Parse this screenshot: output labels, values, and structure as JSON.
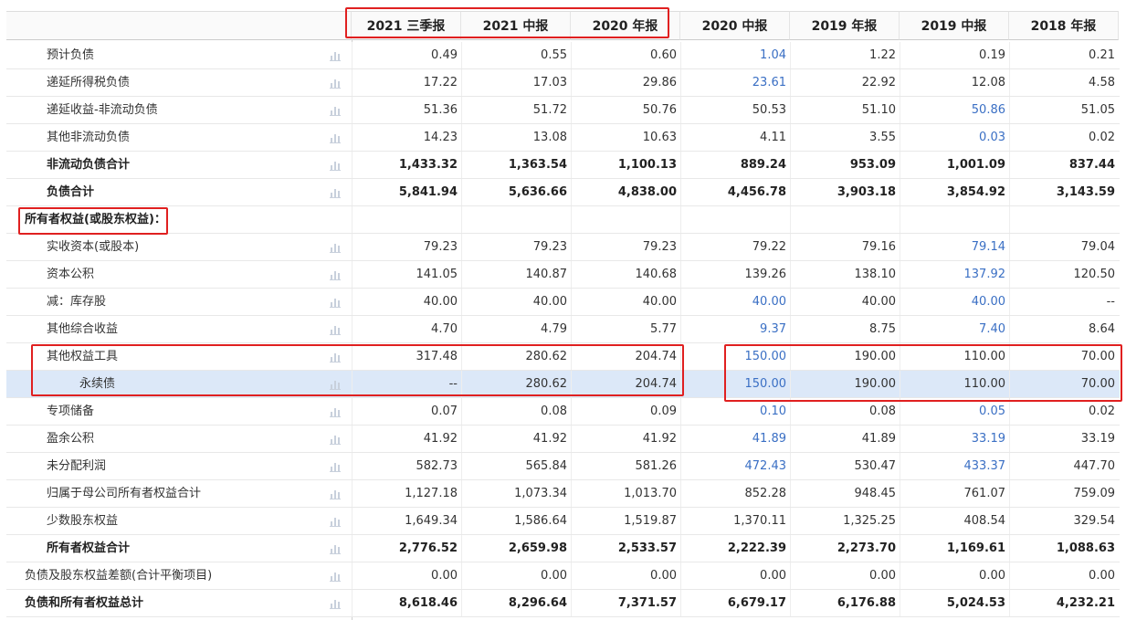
{
  "table": {
    "headers": [
      "2021 三季报",
      "2021 中报",
      "2020 年报",
      "2020 中报",
      "2019 年报",
      "2019 中报",
      "2018 年报"
    ],
    "rows": [
      {
        "label": "预计负债",
        "cells": [
          "0.49",
          "0.55",
          "0.60",
          "1.04",
          "1.22",
          "0.19",
          "0.21"
        ],
        "links": [
          3
        ]
      },
      {
        "label": "递延所得税负债",
        "cells": [
          "17.22",
          "17.03",
          "29.86",
          "23.61",
          "22.92",
          "12.08",
          "4.58"
        ],
        "links": [
          3
        ]
      },
      {
        "label": "递延收益-非流动负债",
        "cells": [
          "51.36",
          "51.72",
          "50.76",
          "50.53",
          "51.10",
          "50.86",
          "51.05"
        ],
        "links": [
          5
        ]
      },
      {
        "label": "其他非流动负债",
        "cells": [
          "14.23",
          "13.08",
          "10.63",
          "4.11",
          "3.55",
          "0.03",
          "0.02"
        ],
        "links": [
          5
        ]
      },
      {
        "label": "非流动负债合计",
        "bold": true,
        "cells": [
          "1,433.32",
          "1,363.54",
          "1,100.13",
          "889.24",
          "953.09",
          "1,001.09",
          "837.44"
        ]
      },
      {
        "label": "负债合计",
        "bold": true,
        "cells": [
          "5,841.94",
          "5,636.66",
          "4,838.00",
          "4,456.78",
          "3,903.18",
          "3,854.92",
          "3,143.59"
        ]
      },
      {
        "label": "所有者权益(或股东权益)：",
        "bold": true,
        "indent": 0,
        "cells": []
      },
      {
        "label": "实收资本(或股本)",
        "cells": [
          "79.23",
          "79.23",
          "79.23",
          "79.22",
          "79.16",
          "79.14",
          "79.04"
        ],
        "links": [
          5
        ]
      },
      {
        "label": "资本公积",
        "cells": [
          "141.05",
          "140.87",
          "140.68",
          "139.26",
          "138.10",
          "137.92",
          "120.50"
        ],
        "links": [
          5
        ]
      },
      {
        "label": "减：库存股",
        "cells": [
          "40.00",
          "40.00",
          "40.00",
          "40.00",
          "40.00",
          "40.00",
          "--"
        ],
        "links": [
          3,
          5
        ]
      },
      {
        "label": "其他综合收益",
        "cells": [
          "4.70",
          "4.79",
          "5.77",
          "9.37",
          "8.75",
          "7.40",
          "8.64"
        ],
        "links": [
          3,
          5
        ]
      },
      {
        "label": "其他权益工具",
        "cells": [
          "317.48",
          "280.62",
          "204.74",
          "150.00",
          "190.00",
          "110.00",
          "70.00"
        ],
        "links": [
          3
        ]
      },
      {
        "label": "永续债",
        "indent": 2,
        "highlight": true,
        "cells": [
          "--",
          "280.62",
          "204.74",
          "150.00",
          "190.00",
          "110.00",
          "70.00"
        ],
        "links": [
          3
        ]
      },
      {
        "label": "专项储备",
        "cells": [
          "0.07",
          "0.08",
          "0.09",
          "0.10",
          "0.08",
          "0.05",
          "0.02"
        ],
        "links": [
          3,
          5
        ]
      },
      {
        "label": "盈余公积",
        "cells": [
          "41.92",
          "41.92",
          "41.92",
          "41.89",
          "41.89",
          "33.19",
          "33.19"
        ],
        "links": [
          3,
          5
        ]
      },
      {
        "label": "未分配利润",
        "cells": [
          "582.73",
          "565.84",
          "581.26",
          "472.43",
          "530.47",
          "433.37",
          "447.70"
        ],
        "links": [
          3,
          5
        ]
      },
      {
        "label": "归属于母公司所有者权益合计",
        "cells": [
          "1,127.18",
          "1,073.34",
          "1,013.70",
          "852.28",
          "948.45",
          "761.07",
          "759.09"
        ]
      },
      {
        "label": "少数股东权益",
        "cells": [
          "1,649.34",
          "1,586.64",
          "1,519.87",
          "1,370.11",
          "1,325.25",
          "408.54",
          "329.54"
        ]
      },
      {
        "label": "所有者权益合计",
        "bold": true,
        "cells": [
          "2,776.52",
          "2,659.98",
          "2,533.57",
          "2,222.39",
          "2,273.70",
          "1,169.61",
          "1,088.63"
        ]
      },
      {
        "label": "负债及股东权益差额(合计平衡项目)",
        "indent": 0,
        "cells": [
          "0.00",
          "0.00",
          "0.00",
          "0.00",
          "0.00",
          "0.00",
          "0.00"
        ]
      },
      {
        "label": "负债和所有者权益总计",
        "bold": true,
        "indent": 0,
        "cells": [
          "8,618.46",
          "8,296.64",
          "7,371.57",
          "6,679.17",
          "6,176.88",
          "5,024.53",
          "4,232.21"
        ]
      }
    ]
  }
}
